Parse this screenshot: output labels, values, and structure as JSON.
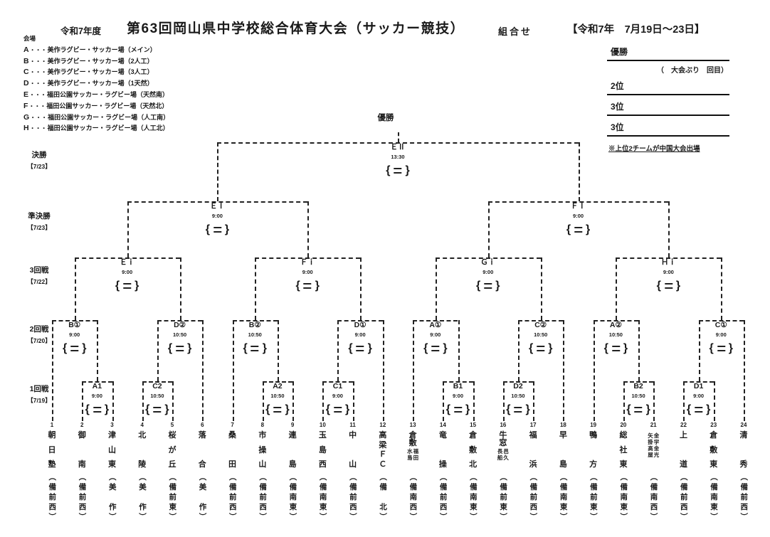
{
  "header": {
    "fiscal_year": "令和7年度",
    "title": "第63回岡山県中学校総合体育大会（サッカー競技）",
    "subtitle": "組合せ",
    "dates": "【令和7年　7月19日～23日】"
  },
  "venues": {
    "heading": "会場",
    "separator": "・・・",
    "items": [
      {
        "letter": "A",
        "name": "美作ラグビー・サッカー場（メイン）"
      },
      {
        "letter": "B",
        "name": "美作ラグビー・サッカー場（2人工）"
      },
      {
        "letter": "C",
        "name": "美作ラグビー・サッカー場（3人工）"
      },
      {
        "letter": "D",
        "name": "美作ラグビー・サッカー場（1天然）"
      },
      {
        "letter": "E",
        "name": "福田公園サッカー・ラグビー場（天然南）"
      },
      {
        "letter": "F",
        "name": "福田公園サッカー・ラグビー場（天然北）"
      },
      {
        "letter": "G",
        "name": "福田公園サッカー・ラグビー場（人工南）"
      },
      {
        "letter": "H",
        "name": "福田公園サッカー・ラグビー場（人工北）"
      }
    ]
  },
  "results_box": {
    "rows": [
      {
        "type": "line",
        "label": "優勝"
      },
      {
        "type": "note",
        "label": "（　大会ぶり　回目）"
      },
      {
        "type": "line",
        "label": "2位"
      },
      {
        "type": "line",
        "label": "3位"
      },
      {
        "type": "line",
        "label": "3位"
      }
    ],
    "footnote": "※上位2チームが中国大会出場"
  },
  "bracket": {
    "champion_label": "優勝",
    "rounds": [
      {
        "name": "決勝",
        "date": "【7/23】"
      },
      {
        "name": "準決勝",
        "date": "【7/23】"
      },
      {
        "name": "3回戦",
        "date": "【7/22】"
      },
      {
        "name": "2回戦",
        "date": "【7/20】"
      },
      {
        "name": "1回戦",
        "date": "【7/19】"
      }
    ],
    "matches": [
      {
        "round": "r1",
        "label": "A1",
        "time": "9:00",
        "left": "t2",
        "right": "t3"
      },
      {
        "round": "r1",
        "label": "C2",
        "time": "10:50",
        "left": "t4",
        "right": "t5"
      },
      {
        "round": "r1",
        "label": "A2",
        "time": "10:50",
        "left": "t8",
        "right": "t9"
      },
      {
        "round": "r1",
        "label": "C1",
        "time": "9:00",
        "left": "t10",
        "right": "t11"
      },
      {
        "round": "r1",
        "label": "B1",
        "time": "9:00",
        "left": "t14",
        "right": "t15"
      },
      {
        "round": "r1",
        "label": "D2",
        "time": "10:50",
        "left": "t16",
        "right": "t17"
      },
      {
        "round": "r1",
        "label": "B2",
        "time": "10:50",
        "left": "t20",
        "right": "t21"
      },
      {
        "round": "r1",
        "label": "D1",
        "time": "9:00",
        "left": "t22",
        "right": "t23"
      },
      {
        "round": "r2",
        "label": "B①",
        "time": "9:00",
        "left": "t1",
        "right": "A1"
      },
      {
        "round": "r2",
        "label": "D②",
        "time": "10:50",
        "left": "C2",
        "right": "t6"
      },
      {
        "round": "r2",
        "label": "B②",
        "time": "10:50",
        "left": "t7",
        "right": "A2"
      },
      {
        "round": "r2",
        "label": "D①",
        "time": "9:00",
        "left": "C1",
        "right": "t12"
      },
      {
        "round": "r2",
        "label": "A①",
        "time": "9:00",
        "left": "t13",
        "right": "B1"
      },
      {
        "round": "r2",
        "label": "C②",
        "time": "10:50",
        "left": "D2",
        "right": "t18"
      },
      {
        "round": "r2",
        "label": "A②",
        "time": "10:50",
        "left": "t19",
        "right": "B2"
      },
      {
        "round": "r2",
        "label": "C①",
        "time": "9:00",
        "left": "D1",
        "right": "t24"
      },
      {
        "round": "r3",
        "label": "Ｅｉ",
        "time": "9:00",
        "left": "B①",
        "right": "D②"
      },
      {
        "round": "r3",
        "label": "Ｆｉ",
        "time": "9:00",
        "left": "B②",
        "right": "D①"
      },
      {
        "round": "r3",
        "label": "Ｇｉ",
        "time": "9:00",
        "left": "A①",
        "right": "C②"
      },
      {
        "round": "r3",
        "label": "Ｈｉ",
        "time": "9:00",
        "left": "A②",
        "right": "C①"
      },
      {
        "round": "semi",
        "label": "ＥⅠ",
        "time": "9:00",
        "left": "Ｅｉ",
        "right": "Ｆｉ"
      },
      {
        "round": "semi",
        "label": "ＦⅠ",
        "time": "9:00",
        "left": "Ｇｉ",
        "right": "Ｈｉ"
      },
      {
        "round": "final",
        "label": "ＥⅡ",
        "time": "13:30",
        "left": "ＥⅠ",
        "right": "ＦⅠ"
      }
    ]
  },
  "teams": [
    {
      "n": 1,
      "name": "朝日塾",
      "region": "備前西"
    },
    {
      "n": 2,
      "name": "御南",
      "region": "備前西"
    },
    {
      "n": 3,
      "name": "津山東",
      "region": "美作"
    },
    {
      "n": 4,
      "name": "北陵",
      "region": "美作"
    },
    {
      "n": 5,
      "name": "桜が丘",
      "region": "備前東"
    },
    {
      "n": 6,
      "name": "落合",
      "region": "美作"
    },
    {
      "n": 7,
      "name": "桑田",
      "region": "備前西"
    },
    {
      "n": 8,
      "name": "市操山",
      "region": "備前西"
    },
    {
      "n": 9,
      "name": "連島",
      "region": "備南東"
    },
    {
      "n": 10,
      "name": "玉島西",
      "region": "備南東"
    },
    {
      "n": 11,
      "name": "中山",
      "region": "備前西"
    },
    {
      "n": 12,
      "name": "高梁ＦＣ",
      "region": "備北"
    },
    {
      "n": 13,
      "main": "倉敷",
      "cols": [
        [
          "福田"
        ],
        [
          "水島"
        ]
      ],
      "region": "備南西"
    },
    {
      "n": 14,
      "name": "竜操",
      "region": "備前西"
    },
    {
      "n": 15,
      "name": "倉敷北",
      "region": "備南東"
    },
    {
      "n": 16,
      "main": "牛窓",
      "cols": [
        [
          "邑久"
        ],
        [
          "長船"
        ]
      ],
      "region": "備前東"
    },
    {
      "n": 17,
      "name": "福浜",
      "region": "備前西"
    },
    {
      "n": 18,
      "name": "早島",
      "region": "備南東"
    },
    {
      "n": 19,
      "name": "鴨方",
      "region": "備前東"
    },
    {
      "n": 20,
      "name": "総社東",
      "region": "備南東"
    },
    {
      "n": 21,
      "cols": [
        [
          "金学",
          "金光"
        ],
        [
          "矢掛",
          "高屋"
        ]
      ],
      "region": "備南西"
    },
    {
      "n": 22,
      "name": "上道",
      "region": "備前西"
    },
    {
      "n": 23,
      "name": "倉敷東",
      "region": "備南東"
    },
    {
      "n": 24,
      "name": "清秀",
      "region": "備前西"
    }
  ]
}
